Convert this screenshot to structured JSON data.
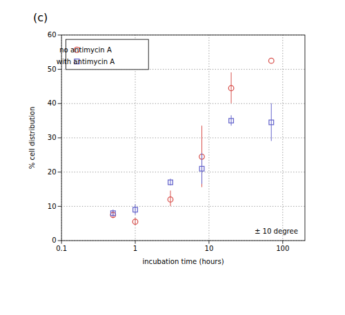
{
  "chart_data": {
    "type": "scatter",
    "title": "(c)",
    "xlabel": "incubation time (hours)",
    "ylabel": "% cell distribution",
    "log": "x",
    "xlim": [
      0.1,
      200
    ],
    "ylim": [
      0,
      60
    ],
    "xticks": [
      0.1,
      1,
      10,
      100
    ],
    "yticks": [
      0,
      10,
      20,
      30,
      40,
      50,
      60
    ],
    "grid": true,
    "legend": "upper left",
    "annotation": "± 10 degree",
    "x": [
      0.5,
      1.0,
      3.0,
      8.0,
      20.0,
      70.0
    ],
    "series": [
      {
        "name": "no antimycin A",
        "color": "#d9534f",
        "marker": "circle",
        "values": [
          7.5,
          5.5,
          12.0,
          24.5,
          44.5,
          52.5
        ],
        "yerr_low": [
          1.0,
          1.0,
          2.0,
          9.0,
          4.5,
          0.0
        ],
        "yerr_high": [
          1.0,
          1.0,
          2.5,
          9.0,
          4.5,
          0.0
        ]
      },
      {
        "name": "with antimycin A",
        "color": "#6666cc",
        "marker": "square",
        "values": [
          8.0,
          9.0,
          17.0,
          21.0,
          35.0,
          34.5
        ],
        "yerr_low": [
          1.0,
          1.5,
          1.0,
          4.5,
          1.5,
          5.5
        ],
        "yerr_high": [
          1.0,
          1.5,
          1.0,
          4.5,
          1.5,
          5.5
        ]
      }
    ]
  }
}
